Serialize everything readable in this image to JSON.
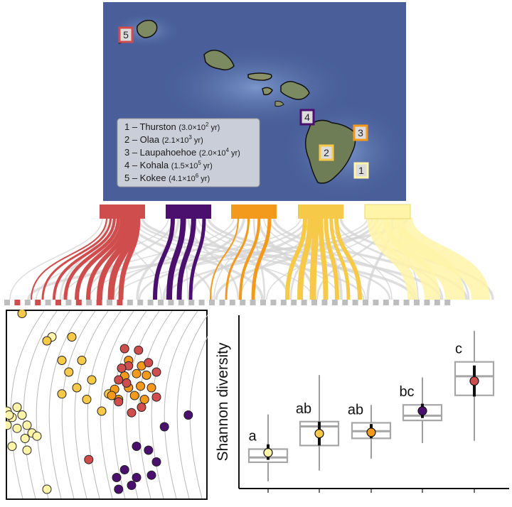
{
  "colors": {
    "thurston": "#fff4a8",
    "olaa": "#f7c948",
    "laupahoehoe": "#f39a1d",
    "kohala": "#4b0f6e",
    "kokee": "#cf4d4d",
    "gray": "#bdbdbd",
    "ocean": "#4a5f9a"
  },
  "map": {
    "legend": [
      {
        "num": "1",
        "dash": " – ",
        "name": "Thurston",
        "age_base": "(3.0×10",
        "age_exp": "2",
        "age_unit": " yr)"
      },
      {
        "num": "2",
        "dash": " – ",
        "name": "Olaa",
        "age_base": "(2.1×10",
        "age_exp": "3",
        "age_unit": " yr)"
      },
      {
        "num": "3",
        "dash": " – ",
        "name": "Laupahoehoe",
        "age_base": "(2.0×10",
        "age_exp": "4",
        "age_unit": " yr)"
      },
      {
        "num": "4",
        "dash": " – ",
        "name": "Kohala",
        "age_base": "(1.5×10",
        "age_exp": "5",
        "age_unit": " yr)"
      },
      {
        "num": "5",
        "dash": " – ",
        "name": "Kokee",
        "age_base": "(4.1×10",
        "age_exp": "6",
        "age_unit": " yr)"
      }
    ],
    "site_markers": [
      {
        "label": "5",
        "color": "kokee"
      },
      {
        "label": "4",
        "color": "kohala"
      },
      {
        "label": "3",
        "color": "laupahoehoe"
      },
      {
        "label": "2",
        "color": "olaa"
      },
      {
        "label": "1",
        "color": "thurston"
      }
    ]
  },
  "chart_data": [
    {
      "type": "flow",
      "description_label": "",
      "sources": [
        "Kokee",
        "Kohala",
        "Laupahoehoe",
        "Olaa",
        "Thurston"
      ]
    },
    {
      "type": "scatter",
      "series": [
        {
          "site": "Thurston",
          "color": "thurston",
          "points": [
            [
              -1.2,
              0.5
            ],
            [
              -1.05,
              -0.05
            ],
            [
              -0.9,
              -0.05
            ],
            [
              -1.0,
              -0.1
            ],
            [
              -0.95,
              -0.18
            ],
            [
              -0.85,
              -0.15
            ],
            [
              -1.0,
              -0.28
            ],
            [
              -0.9,
              -0.32
            ],
            [
              -0.8,
              -0.28
            ],
            [
              -0.82,
              -0.45
            ],
            [
              -0.75,
              -0.38
            ],
            [
              -0.95,
              -0.55
            ],
            [
              -0.8,
              -0.6
            ],
            [
              -0.7,
              -0.42
            ],
            [
              -0.98,
              -0.15
            ],
            [
              -0.6,
              -1.1
            ],
            [
              -0.55,
              0.85
            ]
          ]
        },
        {
          "site": "Olaa",
          "color": "olaa",
          "points": [
            [
              -0.85,
              1.15
            ],
            [
              -0.6,
              0.8
            ],
            [
              -0.35,
              0.85
            ],
            [
              -0.45,
              0.55
            ],
            [
              -0.25,
              0.55
            ],
            [
              -0.38,
              0.4
            ],
            [
              -0.15,
              0.3
            ],
            [
              -0.3,
              0.2
            ],
            [
              -0.45,
              0.12
            ],
            [
              -0.2,
              0.05
            ],
            [
              -0.05,
              -0.1
            ],
            [
              0.02,
              0.12
            ]
          ]
        },
        {
          "site": "Laupahoehoe",
          "color": "laupahoehoe",
          "points": [
            [
              0.22,
              0.55
            ],
            [
              0.35,
              0.48
            ],
            [
              0.3,
              0.38
            ],
            [
              0.4,
              0.36
            ],
            [
              0.18,
              0.35
            ],
            [
              0.08,
              0.18
            ],
            [
              0.22,
              0.2
            ],
            [
              0.34,
              0.22
            ],
            [
              0.45,
              0.2
            ],
            [
              0.28,
              0.1
            ],
            [
              0.38,
              0.05
            ],
            [
              0.12,
              0.05
            ],
            [
              0.05,
              0.1
            ]
          ]
        },
        {
          "site": "Kohala",
          "color": "kohala",
          "points": [
            [
              0.82,
              -0.15
            ],
            [
              0.58,
              -0.3
            ],
            [
              0.3,
              -0.55
            ],
            [
              0.42,
              -0.6
            ],
            [
              0.5,
              -0.75
            ],
            [
              0.18,
              -0.85
            ],
            [
              0.1,
              -0.95
            ],
            [
              0.3,
              -0.95
            ],
            [
              0.25,
              -1.05
            ],
            [
              0.12,
              -1.1
            ],
            [
              0.45,
              -0.92
            ]
          ]
        },
        {
          "site": "Kokee",
          "color": "kokee",
          "points": [
            [
              0.18,
              0.7
            ],
            [
              0.32,
              0.68
            ],
            [
              0.22,
              0.48
            ],
            [
              0.42,
              0.52
            ],
            [
              0.5,
              0.4
            ],
            [
              0.12,
              0.3
            ],
            [
              0.2,
              0.26
            ],
            [
              0.5,
              0.08
            ],
            [
              0.35,
              -0.05
            ],
            [
              0.25,
              -0.12
            ],
            [
              0.12,
              0.02
            ],
            [
              -0.18,
              -0.72
            ],
            [
              0.15,
              0.45
            ]
          ]
        }
      ]
    },
    {
      "type": "box",
      "ylabel": "Shannon diversity",
      "categories": [
        "Thurston",
        "Olaa",
        "Laupahoehoe",
        "Kohala",
        "Kokee"
      ],
      "boxes": [
        {
          "site": "Thurston",
          "color": "thurston",
          "letter": "a",
          "min": 0.06,
          "q1": 0.22,
          "median": 0.26,
          "q3": 0.33,
          "max": 0.62,
          "mean": 0.3,
          "ci_low": 0.24,
          "ci_high": 0.37
        },
        {
          "site": "Olaa",
          "color": "olaa",
          "letter": "ab",
          "min": 0.15,
          "q1": 0.36,
          "median": 0.52,
          "q3": 0.56,
          "max": 0.95,
          "mean": 0.46,
          "ci_low": 0.36,
          "ci_high": 0.56
        },
        {
          "site": "Laupahoehoe",
          "color": "laupahoehoe",
          "letter": "ab",
          "min": 0.25,
          "q1": 0.42,
          "median": 0.48,
          "q3": 0.55,
          "max": 0.7,
          "mean": 0.47,
          "ci_low": 0.42,
          "ci_high": 0.54
        },
        {
          "site": "Kohala",
          "color": "kohala",
          "letter": "bc",
          "min": 0.38,
          "q1": 0.57,
          "median": 0.61,
          "q3": 0.7,
          "max": 0.93,
          "mean": 0.65,
          "ci_low": 0.59,
          "ci_high": 0.71
        },
        {
          "site": "Kokee",
          "color": "kokee",
          "letter": "c",
          "min": 0.4,
          "q1": 0.78,
          "median": 0.94,
          "q3": 1.06,
          "max": 1.32,
          "mean": 0.9,
          "ci_low": 0.77,
          "ci_high": 1.03
        }
      ],
      "ylim": [
        0,
        1.45
      ]
    }
  ]
}
